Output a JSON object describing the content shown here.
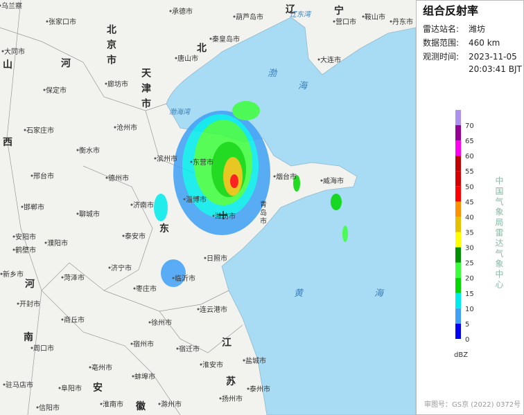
{
  "panel": {
    "title": "组合反射率",
    "station_label": "雷达站名:",
    "station": "潍坊",
    "range_label": "数据范围:",
    "range": "460 km",
    "time_label": "观测时间:",
    "date": "2023-11-05",
    "time": "20:03:41 BJT"
  },
  "legend": {
    "ticks": [
      0,
      5,
      10,
      15,
      20,
      25,
      30,
      35,
      40,
      45,
      50,
      55,
      60,
      65,
      70
    ],
    "colors": [
      "#0000f6",
      "#3ea0f6",
      "#00ecec",
      "#00d800",
      "#3cff3c",
      "#019000",
      "#ffff00",
      "#e7c000",
      "#ff9000",
      "#ff0000",
      "#d60000",
      "#c00000",
      "#ff00f0",
      "#960094",
      "#ad90f0"
    ],
    "unit": "dBZ"
  },
  "credit": "中国气象局雷达气象中心",
  "approval": "审图号：GS京 (2022) 0372号",
  "map": {
    "cities": [
      "乌兰察",
      "承德市",
      "秦皇岛市",
      "葫芦岛市",
      "营口市",
      "鞍山市",
      "丹东市",
      "张家口市",
      "唐山市",
      "大同市",
      "保定市",
      "廊坊市",
      "大连市",
      "沧州市",
      "石家庄市",
      "衡水市",
      "滨州市",
      "东营市",
      "烟台市",
      "威海市",
      "邢台市",
      "德州市",
      "济南市",
      "邯郸市",
      "聊城市",
      "淄博市",
      "潍坊市",
      "泰安市",
      "安阳市",
      "鹤壁市",
      "濮阳市",
      "日照市",
      "济宁市",
      "新乡市",
      "菏泽市",
      "临沂市",
      "枣庄市",
      "连云港市",
      "开封市",
      "商丘市",
      "徐州市",
      "宿迁市",
      "淮安市",
      "盐城市",
      "周口市",
      "宿州市",
      "亳州市",
      "阜阳市",
      "蚌埠市",
      "驻马店市",
      "信阳市",
      "泰州市",
      "扬州市",
      "淮南市",
      "滁州市"
    ],
    "vertical": [
      "北京市",
      "天津市",
      "青岛市"
    ],
    "regions": [
      "河",
      "北",
      "山",
      "西",
      "东",
      "河",
      "南",
      "江",
      "苏",
      "安",
      "徽",
      "辽",
      "宁"
    ],
    "seas": [
      "渤海湾",
      "辽东湾",
      "渤",
      "海",
      "黄",
      "海"
    ]
  }
}
